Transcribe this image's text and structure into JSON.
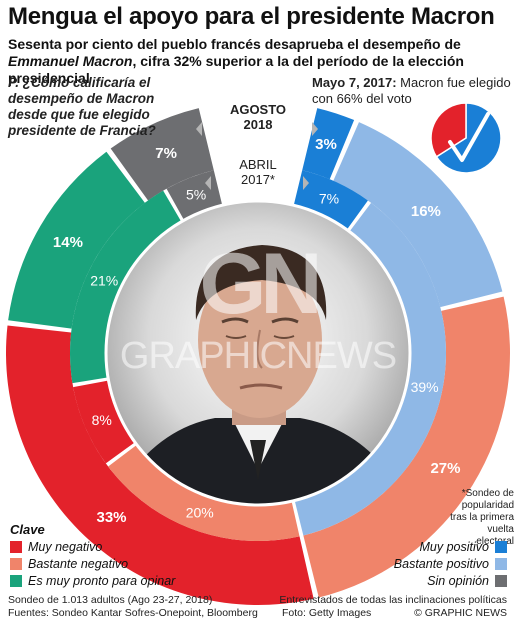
{
  "header": {
    "title": "Mengua el apoyo para el presidente Macron",
    "subtitle_part1": "Sesenta por ciento del pueblo francés desaprueba el desempeño de ",
    "subtitle_name": "Emmanuel Macron",
    "subtitle_part2": ", cifra 32% superior a la del período de la elección presidencial"
  },
  "question": "P. ¿Cómo calificaría el desempeño de Macron desde que fue elegido presidente de Francia?",
  "election": {
    "date": "Mayo 7, 2017:",
    "text": " Macron fue elegido con 66% del voto",
    "vote_pct": 66,
    "colors": {
      "win": "#1a7fd6",
      "rest": "#e3222b"
    }
  },
  "ring_labels": {
    "outer": "AGOSTO 2018",
    "inner": "ABRIL 2017*"
  },
  "footnote": "*Sondeo de popularidad tras la primera vuelta electoral",
  "legend": {
    "title": "Clave",
    "left": [
      {
        "label": "Muy negativo",
        "color": "#e3222b"
      },
      {
        "label": "Bastante negativo",
        "color": "#f0846a"
      },
      {
        "label": "Es muy pronto para opinar",
        "color": "#1aa37c"
      }
    ],
    "right": [
      {
        "label": "Muy positivo",
        "color": "#1a7fd6"
      },
      {
        "label": "Bastante positivo",
        "color": "#8fb8e6"
      },
      {
        "label": "Sin opinión",
        "color": "#6d6e71"
      }
    ]
  },
  "bottom": {
    "sample": "Sondeo de 1.013 adultos (Ago 23-27, 2018)",
    "sources": "Fuentes: Sondeo Kantar Sofres-Onepoint, Bloomberg",
    "note": "Entrevistados de todas las inclinaciones políticas",
    "photo": "Foto: Getty Images",
    "credit": "© GRAPHIC NEWS"
  },
  "watermark": {
    "logo": "GN",
    "text": "GRAPHICNEWS"
  },
  "chart_data": {
    "type": "pie",
    "rings": [
      {
        "name": "AGOSTO 2018",
        "values": [
          {
            "category": "Muy positivo",
            "value": 3,
            "label": "3%"
          },
          {
            "category": "Bastante positivo",
            "value": 16,
            "label": "16%"
          },
          {
            "category": "Bastante negativo",
            "value": 27,
            "label": "27%"
          },
          {
            "category": "Muy negativo",
            "value": 33,
            "label": "33%"
          },
          {
            "category": "Es muy pronto para opinar",
            "value": 14,
            "label": "14%"
          },
          {
            "category": "Sin opinión",
            "value": 7,
            "label": "7%"
          }
        ]
      },
      {
        "name": "ABRIL 2017*",
        "values": [
          {
            "category": "Muy positivo",
            "value": 7,
            "label": "7%"
          },
          {
            "category": "Bastante positivo",
            "value": 39,
            "label": "39%"
          },
          {
            "category": "Bastante negativo",
            "value": 20,
            "label": "20%"
          },
          {
            "category": "Muy negativo",
            "value": 8,
            "label": "8%"
          },
          {
            "category": "Es muy pronto para opinar",
            "value": 21,
            "label": "21%"
          },
          {
            "category": "Sin opinión",
            "value": 5,
            "label": "5%"
          }
        ]
      }
    ],
    "colors": {
      "Muy positivo": "#1a7fd6",
      "Bastante positivo": "#8fb8e6",
      "Bastante negativo": "#f0846a",
      "Muy negativo": "#e3222b",
      "Es muy pronto para opinar": "#1aa37c",
      "Sin opinión": "#6d6e71"
    }
  }
}
